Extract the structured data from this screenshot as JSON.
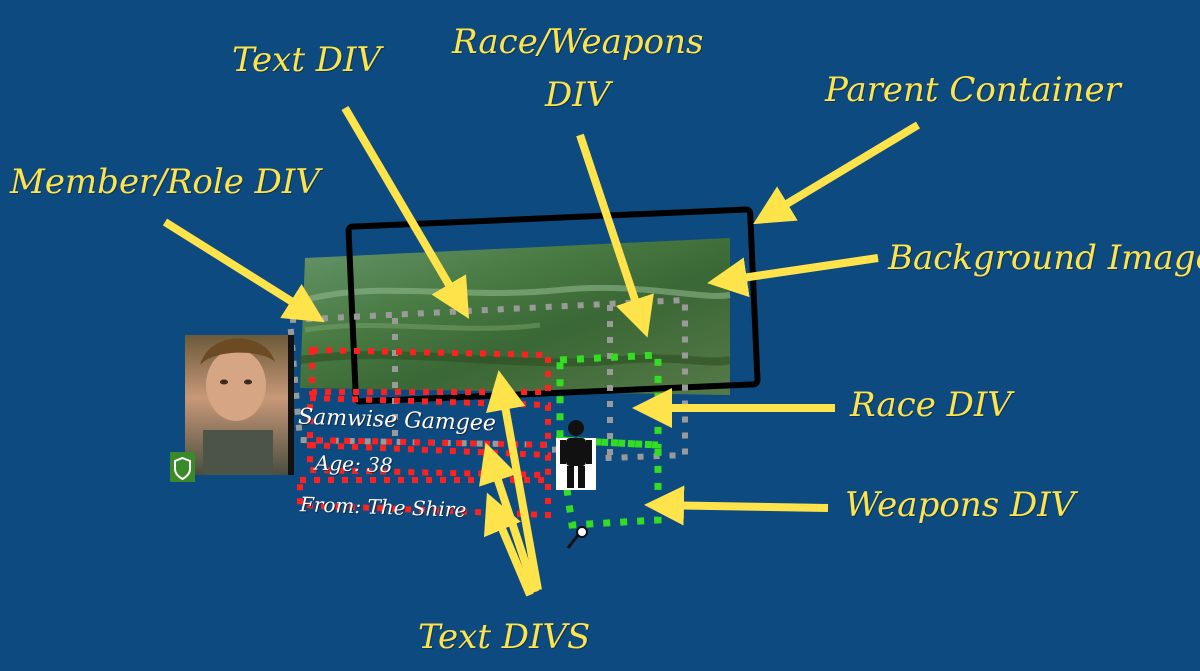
{
  "labels": {
    "text_div": "Text DIV",
    "race_weapons_div_line1": "Race/Weapons",
    "race_weapons_div_line2": "DIV",
    "parent_container": "Parent Container",
    "member_role_div": "Member/Role DIV",
    "background_image": "Background Image",
    "race_div": "Race DIV",
    "weapons_div": "Weapons DIV",
    "text_divs": "Text DIVS"
  },
  "card": {
    "name": "Samwise Gamgee",
    "age": "Age: 38",
    "from": "From: The Shire"
  },
  "colors": {
    "background": "#0d4a80",
    "annotation": "#ffe34a",
    "text_div_outline": "#ff2020",
    "race_weapons_outline": "#9a9a9a",
    "race_weapons_inner_outline": "#33dd22",
    "parent_container_outline": "#000000",
    "member_badge": "#3a8a2a"
  },
  "icons": {
    "member_badge": "shield-icon",
    "race": "person-icon",
    "weapon": "sword-icon"
  }
}
